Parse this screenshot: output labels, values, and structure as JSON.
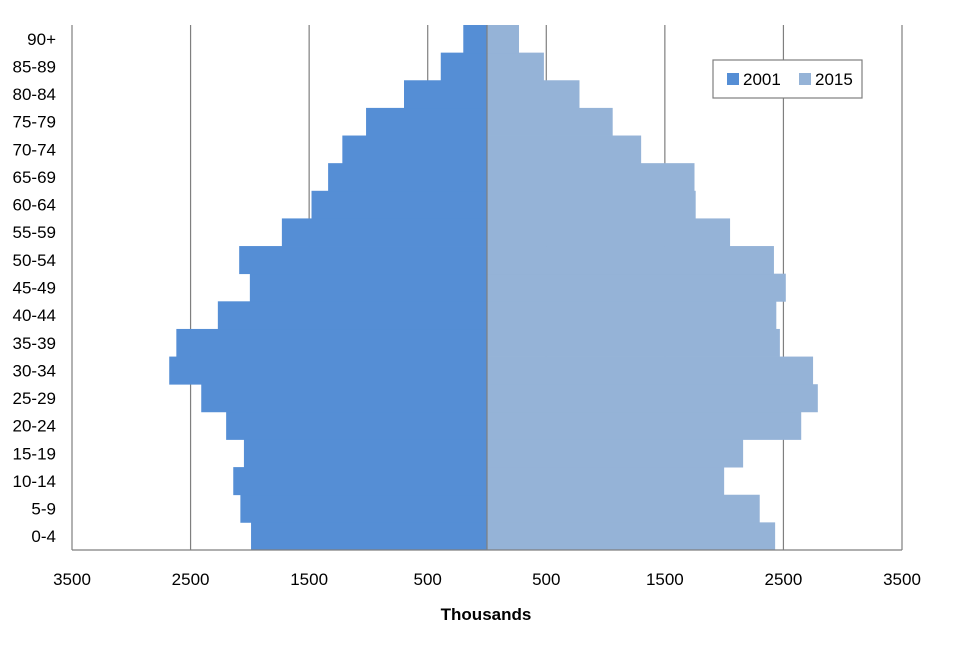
{
  "chart_data": {
    "type": "bar",
    "orientation": "horizontal",
    "layout": "population-pyramid",
    "categories": [
      "0-4",
      "5-9",
      "10-14",
      "15-19",
      "20-24",
      "25-29",
      "30-34",
      "35-39",
      "40-44",
      "45-49",
      "50-54",
      "55-59",
      "60-64",
      "65-69",
      "70-74",
      "75-79",
      "80-84",
      "85-89",
      "90+"
    ],
    "series": [
      {
        "name": "2001",
        "side": "left",
        "color": "#558ED5",
        "values": [
          1990,
          2080,
          2140,
          2050,
          2200,
          2410,
          2680,
          2620,
          2270,
          2000,
          2090,
          1730,
          1480,
          1340,
          1220,
          1020,
          700,
          390,
          200
        ]
      },
      {
        "name": "2015",
        "side": "right",
        "color": "#95B3D7",
        "values": [
          2430,
          2300,
          2000,
          2160,
          2650,
          2790,
          2750,
          2470,
          2440,
          2520,
          2420,
          2050,
          1760,
          1750,
          1300,
          1060,
          780,
          480,
          270
        ]
      }
    ],
    "xlabel": "Thousands",
    "ylabel": "",
    "xlim": [
      -3500,
      3500
    ],
    "x_ticks": [
      -3500,
      -2500,
      -1500,
      -500,
      500,
      1500,
      2500,
      3500
    ],
    "x_tick_labels": [
      "3500",
      "2500",
      "1500",
      "500",
      "500",
      "1500",
      "2500",
      "3500"
    ],
    "grid": "vertical",
    "legend_position": "top-right"
  }
}
